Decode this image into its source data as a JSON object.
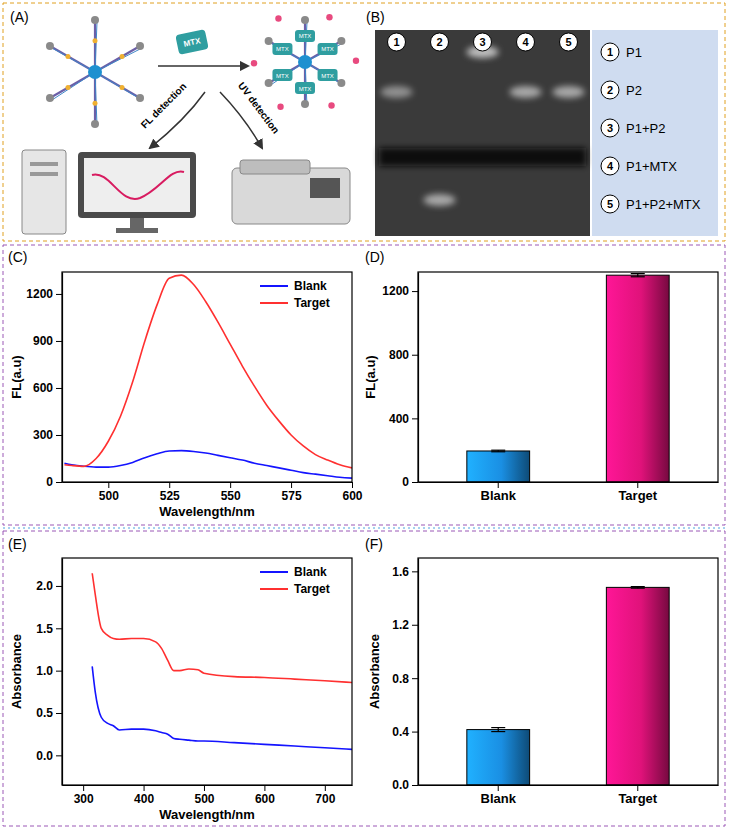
{
  "diagram": {
    "label": "(A)",
    "target": "MTX",
    "detections": [
      "FL detection",
      "UV detection"
    ]
  },
  "gel": {
    "label": "(B)",
    "lanes": [
      {
        "number": "1",
        "label": "P1"
      },
      {
        "number": "2",
        "label": "P2"
      },
      {
        "number": "3",
        "label": "P1+P2"
      },
      {
        "number": "4",
        "label": "P1+MTX"
      },
      {
        "number": "5",
        "label": "P1+P2+MTX"
      }
    ]
  },
  "chart_data": [
    {
      "panel_label": "(C)",
      "type": "line",
      "x_label": "Wavelength/nm",
      "y_label": "FL(a.u)",
      "x": [
        482,
        485,
        490,
        495,
        500,
        505,
        510,
        515,
        520,
        525,
        530,
        535,
        540,
        545,
        550,
        555,
        560,
        565,
        570,
        575,
        580,
        585,
        590,
        595,
        600
      ],
      "series": [
        {
          "name": "Blank",
          "color": "#1414ff",
          "values": [
            120,
            110,
            100,
            95,
            95,
            105,
            125,
            155,
            180,
            198,
            200,
            195,
            185,
            170,
            155,
            140,
            120,
            105,
            90,
            75,
            60,
            50,
            40,
            30,
            25
          ]
        },
        {
          "name": "Target",
          "color": "#ff3030",
          "values": [
            110,
            105,
            100,
            150,
            260,
            420,
            640,
            900,
            1130,
            1300,
            1320,
            1260,
            1150,
            1020,
            880,
            740,
            610,
            490,
            390,
            300,
            230,
            175,
            140,
            110,
            90
          ]
        }
      ],
      "xlim": [
        481,
        600
      ],
      "xticks": [
        500,
        525,
        550,
        575,
        600
      ],
      "ylim": [
        0,
        1340
      ],
      "yticks": [
        0,
        300,
        600,
        900,
        1200
      ],
      "legend": "upper right"
    },
    {
      "panel_label": "(D)",
      "type": "bar",
      "y_label": "FL(a.u)",
      "categories": [
        "Blank",
        "Target"
      ],
      "values": [
        195,
        1300
      ],
      "errors": [
        5,
        10
      ],
      "colors": [
        "#1a8fe3",
        "#e0127a"
      ],
      "ylim": [
        0,
        1320
      ],
      "yticks": [
        0,
        400,
        800,
        1200
      ]
    },
    {
      "panel_label": "(E)",
      "type": "line",
      "x_label": "Wavelength/nm",
      "y_label": "Absorbance",
      "x": [
        315,
        320,
        330,
        340,
        350,
        360,
        380,
        400,
        420,
        430,
        440,
        450,
        460,
        475,
        490,
        500,
        550,
        600,
        650,
        700,
        745
      ],
      "series": [
        {
          "name": "Blank",
          "color": "#1414ff",
          "values": [
            1.05,
            0.75,
            0.45,
            0.38,
            0.35,
            0.3,
            0.31,
            0.31,
            0.29,
            0.27,
            0.25,
            0.2,
            0.19,
            0.18,
            0.17,
            0.17,
            0.15,
            0.13,
            0.11,
            0.09,
            0.07
          ]
        },
        {
          "name": "Target",
          "color": "#ff3030",
          "values": [
            2.15,
            1.9,
            1.5,
            1.42,
            1.38,
            1.37,
            1.38,
            1.38,
            1.34,
            1.26,
            1.12,
            1.0,
            1.0,
            1.02,
            1.01,
            0.97,
            0.93,
            0.92,
            0.9,
            0.88,
            0.86
          ]
        }
      ],
      "xlim": [
        265,
        745
      ],
      "xticks": [
        300,
        400,
        500,
        600,
        700
      ],
      "ylim": [
        -0.35,
        2.33
      ],
      "yticks": [
        {
          "value": 0,
          "label": "0.0"
        },
        0.5,
        {
          "value": 1,
          "label": "1.0"
        },
        1.5,
        {
          "value": 2,
          "label": "2.0"
        }
      ],
      "legend": "upper right"
    },
    {
      "panel_label": "(F)",
      "type": "bar",
      "y_label": "Absorbance",
      "categories": [
        "Blank",
        "Target"
      ],
      "values": [
        0.415,
        1.48
      ],
      "errors": [
        0.015,
        0.006
      ],
      "colors": [
        "#1a8fe3",
        "#e0127a"
      ],
      "ylim": [
        0,
        1.7
      ],
      "yticks": [
        {
          "value": 0,
          "label": "0.0"
        },
        0.4,
        0.8,
        1.2,
        1.6
      ]
    }
  ]
}
